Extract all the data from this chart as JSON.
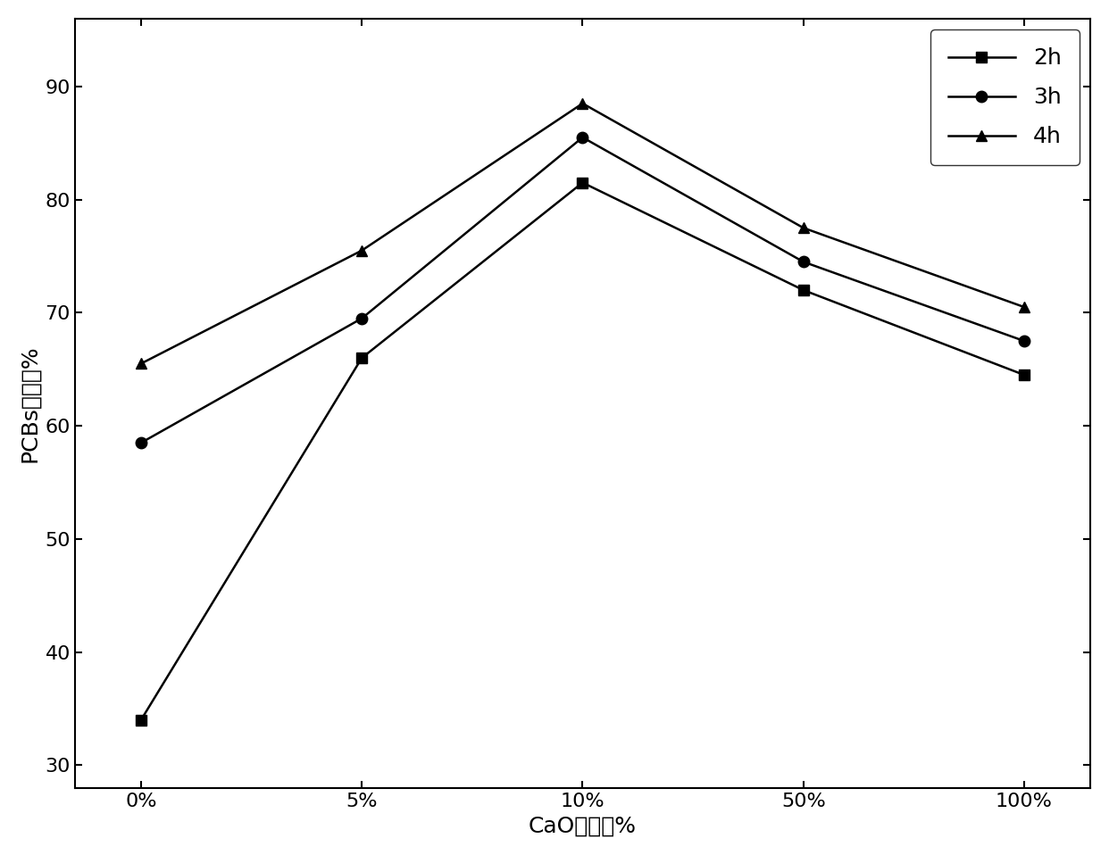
{
  "x_labels": [
    "0%",
    "5%",
    "10%",
    "50%",
    "100%"
  ],
  "x_positions": [
    0,
    1,
    2,
    3,
    4
  ],
  "series": [
    {
      "label": "2h",
      "values": [
        34,
        66,
        81.5,
        72,
        64.5
      ],
      "marker": "s",
      "color": "#000000",
      "markersize": 9,
      "linewidth": 1.8
    },
    {
      "label": "3h",
      "values": [
        58.5,
        69.5,
        85.5,
        74.5,
        67.5
      ],
      "marker": "o",
      "color": "#000000",
      "markersize": 9,
      "linewidth": 1.8
    },
    {
      "label": "4h",
      "values": [
        65.5,
        75.5,
        88.5,
        77.5,
        70.5
      ],
      "marker": "^",
      "color": "#000000",
      "markersize": 9,
      "linewidth": 1.8
    }
  ],
  "ylabel": "PCBs脉氯率%",
  "xlabel": "CaO添加量%",
  "ylim": [
    28,
    96
  ],
  "yticks": [
    30,
    40,
    50,
    60,
    70,
    80,
    90
  ],
  "background_color": "#ffffff",
  "legend_loc": "upper right",
  "ylabel_fontsize": 18,
  "xlabel_fontsize": 18,
  "tick_fontsize": 16,
  "legend_fontsize": 18
}
